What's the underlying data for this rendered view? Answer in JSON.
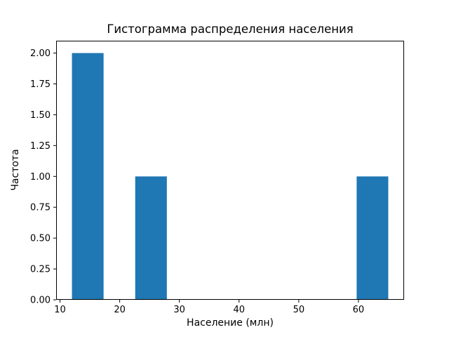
{
  "chart_data": {
    "type": "bar",
    "chart_kind": "histogram",
    "title": "Гистограмма распределения населения",
    "xlabel": "Население (млн)",
    "ylabel": "Частота",
    "bar_color": "#1f77b4",
    "background_color": "#ffffff",
    "axis_color": "#000000",
    "grid": false,
    "legend": false,
    "xlim": [
      9.35,
      67.65
    ],
    "ylim": [
      0,
      2.1
    ],
    "xticks": [
      10,
      20,
      30,
      40,
      50,
      60
    ],
    "xtick_labels": [
      "10",
      "20",
      "30",
      "40",
      "50",
      "60"
    ],
    "yticks": [
      0,
      0.25,
      0.5,
      0.75,
      1.0,
      1.25,
      1.5,
      1.75,
      2.0
    ],
    "ytick_labels": [
      "0.00",
      "0.25",
      "0.50",
      "0.75",
      "1.00",
      "1.25",
      "1.50",
      "1.75",
      "2.00"
    ],
    "bars": [
      {
        "x0": 12.0,
        "x1": 17.3,
        "height": 2
      },
      {
        "x0": 22.6,
        "x1": 27.9,
        "height": 1
      },
      {
        "x0": 59.7,
        "x1": 65.0,
        "height": 1
      }
    ]
  }
}
